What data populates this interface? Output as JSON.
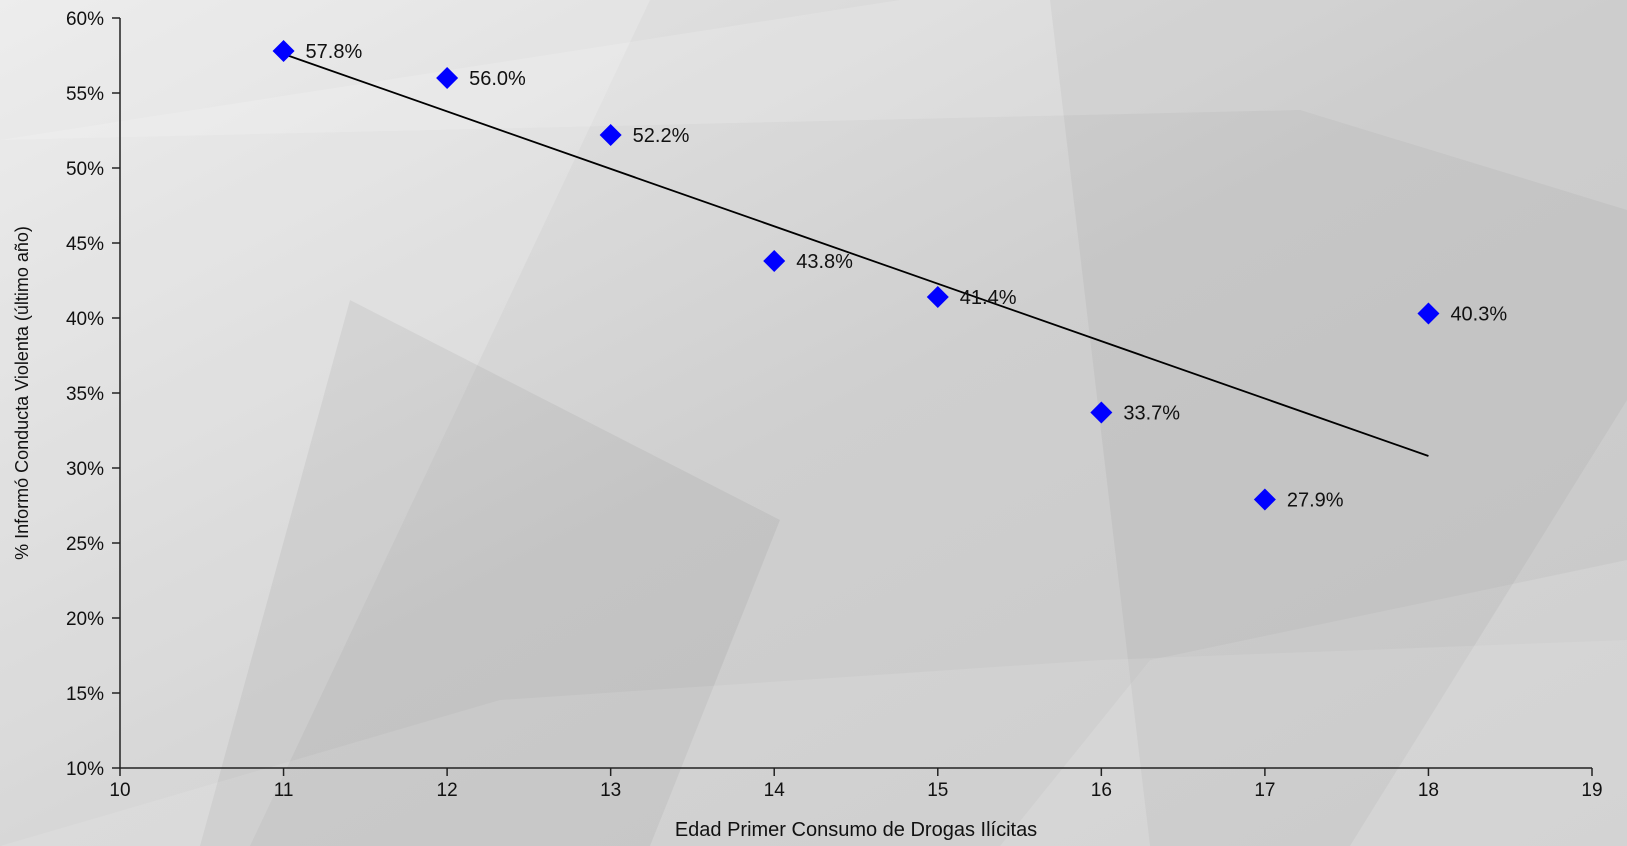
{
  "chart_data": {
    "type": "scatter",
    "title": "",
    "xlabel": "Edad Primer Consumo de Drogas Ilícitas",
    "ylabel": "% Informó Conducta Violenta (último año)",
    "xlim": [
      10,
      19
    ],
    "ylim": [
      10,
      60
    ],
    "x_ticks": [
      "10",
      "11",
      "12",
      "13",
      "14",
      "15",
      "16",
      "17",
      "18",
      "19"
    ],
    "y_ticks": [
      "10%",
      "15%",
      "20%",
      "25%",
      "30%",
      "35%",
      "40%",
      "45%",
      "50%",
      "55%",
      "60%"
    ],
    "grid": false,
    "legend": "none",
    "marker_color": "#0000ff",
    "trendline_color": "#000000",
    "series": [
      {
        "x": [
          11,
          12,
          13,
          14,
          15,
          16,
          17,
          18
        ],
        "values": [
          57.8,
          56.0,
          52.2,
          43.8,
          41.4,
          33.7,
          27.9,
          40.3
        ],
        "labels": [
          "57.8%",
          "56.0%",
          "52.2%",
          "43.8%",
          "41.4%",
          "33.7%",
          "27.9%",
          "40.3%"
        ]
      }
    ],
    "trendline": {
      "type": "linear",
      "x": [
        11,
        18
      ],
      "values": [
        57.6,
        30.8
      ]
    }
  }
}
